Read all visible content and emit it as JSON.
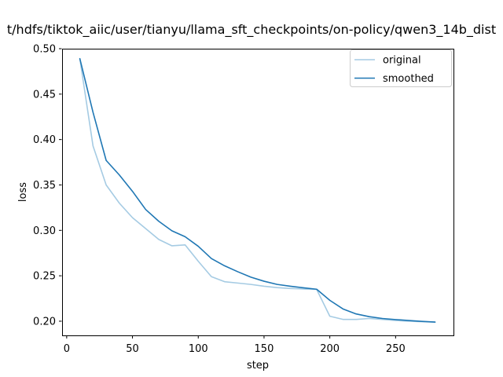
{
  "chart_data": {
    "type": "line",
    "title": "t/hdfs/tiktok_aiic/user/tianyu/llama_sft_checkpoints/on-policy/qwen3_14b_dist",
    "xlabel": "step",
    "ylabel": "loss",
    "xlim": [
      -3.5,
      294
    ],
    "ylim": [
      0.1844,
      0.5
    ],
    "grid": false,
    "legend_position": "upper right",
    "xticks": [
      0,
      50,
      100,
      150,
      200,
      250
    ],
    "xtick_labels": [
      "0",
      "50",
      "100",
      "150",
      "200",
      "250"
    ],
    "yticks": [
      0.2,
      0.25,
      0.3,
      0.35,
      0.4,
      0.45,
      0.5
    ],
    "ytick_labels": [
      "0.20",
      "0.25",
      "0.30",
      "0.35",
      "0.40",
      "0.45",
      "0.50"
    ],
    "x": [
      10,
      20,
      30,
      40,
      50,
      60,
      70,
      80,
      90,
      100,
      110,
      120,
      130,
      140,
      150,
      160,
      170,
      180,
      190,
      200,
      210,
      220,
      230,
      240,
      250,
      260,
      270,
      280
    ],
    "series": [
      {
        "name": "original",
        "color": "#a5cbe3",
        "values": [
          0.489,
          0.393,
          0.35,
          0.33,
          0.314,
          0.302,
          0.29,
          0.283,
          0.284,
          0.266,
          0.249,
          0.2435,
          0.242,
          0.2405,
          0.2385,
          0.237,
          0.236,
          0.2355,
          0.235,
          0.2055,
          0.202,
          0.202,
          0.203,
          0.202,
          0.2008,
          0.2,
          0.1995,
          0.199
        ]
      },
      {
        "name": "smoothed",
        "color": "#1f77b4",
        "values": [
          0.489,
          0.43,
          0.377,
          0.361,
          0.343,
          0.323,
          0.31,
          0.2995,
          0.293,
          0.2825,
          0.269,
          0.261,
          0.2545,
          0.2485,
          0.244,
          0.2405,
          0.2385,
          0.2368,
          0.2352,
          0.223,
          0.2135,
          0.208,
          0.205,
          0.203,
          0.2018,
          0.2008,
          0.1998,
          0.199
        ]
      }
    ],
    "axis_color": "#000000",
    "legend_border_color": "#cccccc",
    "background_color": "#ffffff"
  }
}
